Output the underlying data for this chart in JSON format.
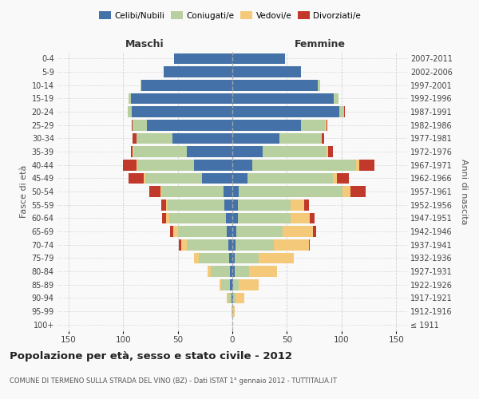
{
  "age_groups": [
    "100+",
    "95-99",
    "90-94",
    "85-89",
    "80-84",
    "75-79",
    "70-74",
    "65-69",
    "60-64",
    "55-59",
    "50-54",
    "45-49",
    "40-44",
    "35-39",
    "30-34",
    "25-29",
    "20-24",
    "15-19",
    "10-14",
    "5-9",
    "0-4"
  ],
  "birth_years": [
    "≤ 1911",
    "1912-1916",
    "1917-1921",
    "1922-1926",
    "1927-1931",
    "1932-1936",
    "1937-1941",
    "1942-1946",
    "1947-1951",
    "1952-1956",
    "1957-1961",
    "1962-1966",
    "1967-1971",
    "1972-1976",
    "1977-1981",
    "1982-1986",
    "1987-1991",
    "1992-1996",
    "1997-2001",
    "2002-2006",
    "2007-2011"
  ],
  "male": {
    "celibi": [
      0,
      0,
      1,
      2,
      2,
      3,
      4,
      5,
      6,
      7,
      8,
      28,
      35,
      42,
      55,
      78,
      92,
      93,
      83,
      63,
      53
    ],
    "coniugati": [
      0,
      1,
      3,
      8,
      18,
      28,
      38,
      45,
      52,
      52,
      57,
      52,
      52,
      48,
      33,
      13,
      4,
      2,
      1,
      0,
      0
    ],
    "vedovi": [
      0,
      0,
      1,
      2,
      3,
      4,
      5,
      4,
      3,
      2,
      1,
      1,
      1,
      1,
      0,
      0,
      0,
      0,
      0,
      0,
      0
    ],
    "divorziati": [
      0,
      0,
      0,
      0,
      0,
      0,
      2,
      3,
      3,
      4,
      10,
      14,
      12,
      2,
      3,
      1,
      0,
      0,
      0,
      0,
      0
    ]
  },
  "female": {
    "nubili": [
      0,
      0,
      1,
      1,
      2,
      2,
      3,
      4,
      5,
      5,
      6,
      14,
      18,
      28,
      43,
      63,
      98,
      93,
      78,
      63,
      48
    ],
    "coniugate": [
      0,
      0,
      2,
      5,
      13,
      22,
      35,
      42,
      48,
      48,
      95,
      78,
      95,
      58,
      38,
      22,
      4,
      4,
      2,
      0,
      0
    ],
    "vedove": [
      0,
      2,
      8,
      18,
      26,
      32,
      32,
      28,
      18,
      13,
      7,
      4,
      3,
      2,
      1,
      1,
      0,
      0,
      0,
      0,
      0
    ],
    "divorziate": [
      0,
      0,
      0,
      0,
      0,
      0,
      1,
      3,
      4,
      4,
      14,
      11,
      14,
      4,
      2,
      1,
      1,
      0,
      0,
      0,
      0
    ]
  },
  "colors": {
    "celibi": "#4472a8",
    "coniugati": "#b8cfa0",
    "vedovi": "#f5c97a",
    "divorziati": "#c0392b"
  },
  "xlim": 160,
  "title": "Popolazione per età, sesso e stato civile - 2012",
  "subtitle": "COMUNE DI TERMENO SULLA STRADA DEL VINO (BZ) - Dati ISTAT 1° gennaio 2012 - TUTTITALIA.IT",
  "ylabel_left": "Fasce di età",
  "ylabel_right": "Anni di nascita",
  "xlabel_male": "Maschi",
  "xlabel_female": "Femmine",
  "bg_color": "#f9f9f9",
  "grid_color": "#cccccc"
}
